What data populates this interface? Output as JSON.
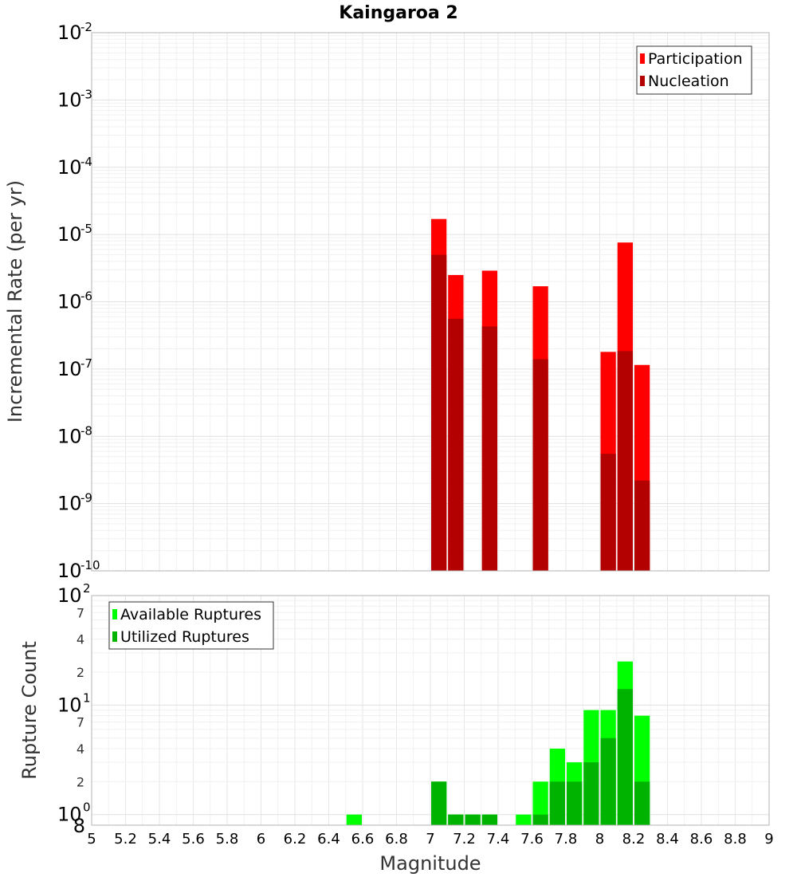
{
  "chart_data": [
    {
      "type": "bar",
      "title": "Kaingaroa 2",
      "xlabel": "",
      "ylabel": "Incremental Rate (per yr)",
      "yscale": "log",
      "xlim": [
        5,
        9
      ],
      "ylim": [
        1e-10,
        0.01
      ],
      "ytick_exponents": [
        "-10",
        "-9",
        "-8",
        "-7",
        "-6",
        "-5",
        "-4",
        "-3",
        "-2"
      ],
      "grid": true,
      "legend_position": "top-right",
      "bar_width": 0.1,
      "colors": {
        "participation": "#ff0000",
        "nucleation": "#b30000"
      },
      "series": [
        {
          "name": "Participation",
          "x": [
            7.05,
            7.15,
            7.35,
            7.65,
            8.05,
            8.15,
            8.25
          ],
          "values": [
            1.7e-05,
            2.5e-06,
            2.9e-06,
            1.7e-06,
            1.8e-07,
            7.6e-06,
            1.15e-07
          ]
        },
        {
          "name": "Nucleation",
          "x": [
            7.05,
            7.15,
            7.35,
            7.65,
            8.05,
            8.15,
            8.25
          ],
          "values": [
            5e-06,
            5.6e-07,
            4.3e-07,
            1.4e-07,
            5.5e-09,
            1.85e-07,
            2.2e-09
          ]
        }
      ]
    },
    {
      "type": "bar",
      "title": "",
      "xlabel": "Magnitude",
      "ylabel": "Rupture Count",
      "yscale": "log",
      "xlim": [
        5,
        9
      ],
      "ylim": [
        0.8,
        100
      ],
      "xticks": [
        "5",
        "5.2",
        "5.4",
        "5.6",
        "5.8",
        "6",
        "6.2",
        "6.4",
        "6.6",
        "6.8",
        "7",
        "7.2",
        "7.4",
        "7.6",
        "7.8",
        "8",
        "8.2",
        "8.4",
        "8.6",
        "8.8",
        "9"
      ],
      "y_major_exponents": [
        "0",
        "1",
        "2"
      ],
      "y_minor_labels": [
        "2",
        "4",
        "7",
        "2",
        "4",
        "7"
      ],
      "y_minor_values": [
        2,
        4,
        7,
        20,
        40,
        70
      ],
      "y_bottom_label": "8",
      "grid": true,
      "legend_position": "top-left",
      "bar_width": 0.1,
      "colors": {
        "available": "#00ff00",
        "utilized": "#00b300"
      },
      "series": [
        {
          "name": "Available Ruptures",
          "x": [
            6.55,
            7.05,
            7.15,
            7.25,
            7.35,
            7.55,
            7.65,
            7.75,
            7.85,
            7.95,
            8.05,
            8.15,
            8.25
          ],
          "values": [
            1,
            2,
            1,
            1,
            1,
            1,
            2,
            4,
            3,
            9,
            9,
            25,
            8
          ]
        },
        {
          "name": "Utilized Ruptures",
          "x": [
            6.55,
            7.05,
            7.15,
            7.25,
            7.35,
            7.55,
            7.65,
            7.75,
            7.85,
            7.95,
            8.05,
            8.15,
            8.25
          ],
          "values": [
            0,
            2,
            1,
            1,
            1,
            0,
            1,
            2,
            2,
            3,
            5,
            14,
            2
          ]
        }
      ]
    }
  ]
}
